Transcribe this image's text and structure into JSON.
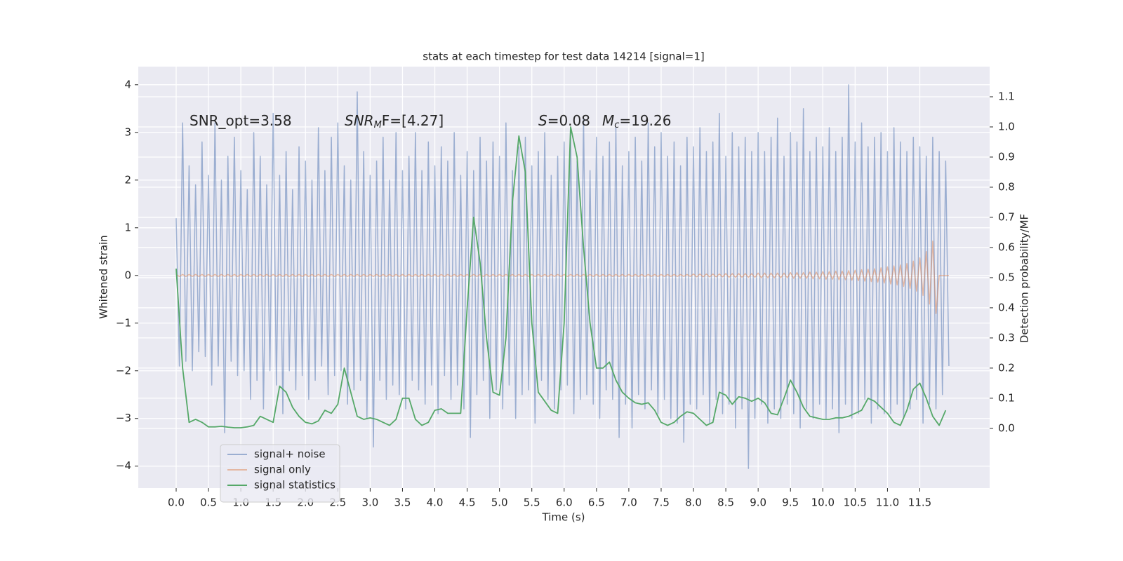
{
  "chart_data": {
    "type": "line",
    "title": "stats at each timestep for test data 14214 [signal=1]",
    "xlabel": "Time (s)",
    "ylabel": "Whitened strain",
    "y2label": "Detection probability/MF",
    "annotations": [
      [
        "SNR_opt=3.58"
      ],
      [
        "SNR",
        "M",
        "F=[4.27]"
      ],
      [
        "S",
        "=0.08"
      ],
      [
        "M",
        "c",
        "=19.26"
      ]
    ],
    "grid": true,
    "legend": "lower left",
    "xlim": [
      -0.586,
      12.58
    ],
    "ylim": [
      -4.46,
      4.38
    ],
    "y2lim": [
      -0.198,
      1.2
    ],
    "xticks": [
      {
        "value": 0,
        "label": "0.0"
      },
      0.5,
      {
        "value": 1,
        "label": "1.0"
      },
      1.5,
      {
        "value": 2,
        "label": "2.0"
      },
      2.5,
      {
        "value": 3,
        "label": "3.0"
      },
      3.5,
      {
        "value": 4,
        "label": "4.0"
      },
      4.5,
      {
        "value": 5,
        "label": "5.0"
      },
      5.5,
      {
        "value": 6,
        "label": "6.0"
      },
      6.5,
      {
        "value": 7,
        "label": "7.0"
      },
      7.5,
      {
        "value": 8,
        "label": "8.0"
      },
      8.5,
      {
        "value": 9,
        "label": "9.0"
      },
      9.5,
      {
        "value": 10,
        "label": "10.0"
      },
      10.5,
      {
        "value": 11,
        "label": "11.0"
      },
      11.5
    ],
    "yticks": [
      {
        "value": -4,
        "label": "−4"
      },
      {
        "value": -3,
        "label": "−3"
      },
      {
        "value": -2,
        "label": "−2"
      },
      {
        "value": -1,
        "label": "−1"
      },
      0,
      1,
      2,
      3,
      4
    ],
    "y2ticks": [
      {
        "value": 0,
        "label": "0.0"
      },
      0.1,
      0.2,
      0.3,
      0.4,
      0.5,
      0.6,
      0.7,
      0.8,
      0.9,
      {
        "value": 1,
        "label": "1.0"
      },
      1.1
    ],
    "x": [
      0,
      0.05,
      0.1,
      0.15,
      0.2,
      0.25,
      0.3,
      0.35,
      0.4,
      0.45,
      0.5,
      0.55,
      0.6,
      0.65,
      0.7,
      0.75,
      0.8,
      0.85,
      0.9,
      0.95,
      1,
      1.05,
      1.1,
      1.15,
      1.2,
      1.25,
      1.3,
      1.35,
      1.4,
      1.45,
      1.5,
      1.55,
      1.6,
      1.65,
      1.7,
      1.75,
      1.8,
      1.85,
      1.9,
      1.95,
      2,
      2.05,
      2.1,
      2.15,
      2.2,
      2.25,
      2.3,
      2.35,
      2.4,
      2.45,
      2.5,
      2.55,
      2.6,
      2.65,
      2.7,
      2.75,
      2.8,
      2.85,
      2.9,
      2.95,
      3,
      3.05,
      3.1,
      3.15,
      3.2,
      3.25,
      3.3,
      3.35,
      3.4,
      3.45,
      3.5,
      3.55,
      3.6,
      3.65,
      3.7,
      3.75,
      3.8,
      3.85,
      3.9,
      3.95,
      4,
      4.05,
      4.1,
      4.15,
      4.2,
      4.25,
      4.3,
      4.35,
      4.4,
      4.45,
      4.5,
      4.55,
      4.6,
      4.65,
      4.7,
      4.75,
      4.8,
      4.85,
      4.9,
      4.95,
      5,
      5.05,
      5.1,
      5.15,
      5.2,
      5.25,
      5.3,
      5.35,
      5.4,
      5.45,
      5.5,
      5.55,
      5.6,
      5.65,
      5.7,
      5.75,
      5.8,
      5.85,
      5.9,
      5.95,
      6,
      6.05,
      6.1,
      6.15,
      6.2,
      6.25,
      6.3,
      6.35,
      6.4,
      6.45,
      6.5,
      6.55,
      6.6,
      6.65,
      6.7,
      6.75,
      6.8,
      6.85,
      6.9,
      6.95,
      7,
      7.05,
      7.1,
      7.15,
      7.2,
      7.25,
      7.3,
      7.35,
      7.4,
      7.45,
      7.5,
      7.55,
      7.6,
      7.65,
      7.7,
      7.75,
      7.8,
      7.85,
      7.9,
      7.95,
      8,
      8.05,
      8.1,
      8.15,
      8.2,
      8.25,
      8.3,
      8.35,
      8.4,
      8.45,
      8.5,
      8.55,
      8.6,
      8.65,
      8.7,
      8.75,
      8.8,
      8.85,
      8.9,
      8.95,
      9,
      9.05,
      9.1,
      9.15,
      9.2,
      9.25,
      9.3,
      9.35,
      9.4,
      9.45,
      9.5,
      9.55,
      9.6,
      9.65,
      9.7,
      9.75,
      9.8,
      9.85,
      9.9,
      9.95,
      10,
      10.05,
      10.1,
      10.15,
      10.2,
      10.25,
      10.3,
      10.35,
      10.4,
      10.45,
      10.5,
      10.55,
      10.6,
      10.65,
      10.7,
      10.75,
      10.8,
      10.85,
      10.9,
      10.95,
      11,
      11.05,
      11.1,
      11.15,
      11.2,
      11.25,
      11.3,
      11.35,
      11.4,
      11.45,
      11.5,
      11.55,
      11.6,
      11.65,
      11.7,
      11.75,
      11.8,
      11.85,
      11.9,
      11.95
    ],
    "series": [
      {
        "name": "signal+ noise",
        "color": "#4c72b0",
        "values": [
          1.2,
          -1.9,
          3.2,
          -1.8,
          2.3,
          -2.0,
          1.9,
          -1.6,
          2.8,
          -1.7,
          2.1,
          -2.3,
          3.2,
          -1.9,
          2.0,
          -3.3,
          2.5,
          -1.8,
          2.9,
          -2.1,
          2.2,
          -2.0,
          1.8,
          -2.6,
          3.0,
          -2.2,
          2.5,
          -2.8,
          1.9,
          -2.0,
          3.4,
          -2.3,
          2.1,
          -2.9,
          2.6,
          -2.0,
          1.8,
          -2.4,
          2.7,
          -2.1,
          2.4,
          -2.6,
          2.0,
          -2.2,
          3.1,
          -1.9,
          2.2,
          -2.5,
          2.9,
          -2.1,
          3.2,
          -2.0,
          2.3,
          -2.7,
          2.0,
          -2.4,
          3.85,
          -2.2,
          2.6,
          -3.0,
          2.1,
          -3.6,
          2.4,
          -2.2,
          2.9,
          -2.6,
          2.0,
          -2.3,
          3.0,
          -2.5,
          2.2,
          -2.8,
          2.5,
          -2.2,
          3.0,
          -2.4,
          2.2,
          -2.7,
          2.8,
          -2.3,
          2.3,
          -2.9,
          2.7,
          -2.1,
          2.4,
          -2.6,
          3.0,
          -2.3,
          2.1,
          -2.8,
          2.6,
          -3.4,
          2.2,
          -2.5,
          2.9,
          -2.2,
          2.4,
          -3.0,
          2.8,
          -2.4,
          2.5,
          -2.8,
          3.2,
          -2.3,
          2.2,
          -3.0,
          2.7,
          -2.5,
          2.9,
          -2.4,
          2.3,
          -3.1,
          2.6,
          -2.2,
          3.0,
          -2.6,
          2.1,
          -2.8,
          2.5,
          -2.4,
          2.8,
          -2.3,
          3.0,
          -2.9,
          2.4,
          -2.6,
          3.3,
          -2.5,
          2.2,
          -2.7,
          2.9,
          -3.0,
          2.5,
          -2.4,
          2.8,
          -2.6,
          3.1,
          -3.4,
          2.3,
          -2.7,
          2.6,
          -3.2,
          2.9,
          -2.5,
          2.4,
          -2.8,
          3.2,
          -2.4,
          2.7,
          -2.9,
          3.0,
          -2.6,
          2.5,
          -3.0,
          2.8,
          -3.1,
          2.3,
          -3.5,
          2.9,
          -2.7,
          2.7,
          -2.8,
          3.1,
          -2.5,
          2.6,
          -3.1,
          2.8,
          -2.6,
          3.4,
          -2.9,
          2.5,
          -2.7,
          3.0,
          -3.2,
          2.7,
          -2.8,
          2.9,
          -4.05,
          2.6,
          -3.0,
          3.0,
          -2.7,
          2.6,
          -3.1,
          2.9,
          -2.8,
          3.3,
          -3.0,
          2.5,
          -2.7,
          3.0,
          -2.9,
          2.8,
          -3.2,
          3.5,
          -2.8,
          2.6,
          -3.0,
          2.9,
          -2.7,
          2.7,
          -3.0,
          3.1,
          -2.8,
          2.6,
          -3.3,
          2.9,
          -2.7,
          4.0,
          -3.0,
          2.8,
          -2.9,
          3.2,
          -2.6,
          2.7,
          -3.1,
          2.9,
          -2.8,
          3.0,
          -2.9,
          2.6,
          -2.9,
          3.1,
          -2.7,
          2.8,
          -3.0,
          2.6,
          -2.8,
          2.9,
          -2.6,
          2.7,
          -3.1,
          2.5,
          -2.7,
          2.9,
          -2.8,
          2.6,
          -2.5,
          2.4,
          -1.9
        ]
      },
      {
        "name": "signal only",
        "color": "#dd8452",
        "values": [
          0.02,
          -0.02,
          0.02,
          -0.02,
          0.02,
          -0.02,
          0.02,
          -0.02,
          0.02,
          -0.02,
          0.02,
          -0.02,
          0.02,
          -0.02,
          0.02,
          -0.02,
          0.02,
          -0.02,
          0.02,
          -0.02,
          0.02,
          -0.02,
          0.02,
          -0.02,
          0.02,
          -0.02,
          0.02,
          -0.02,
          0.02,
          -0.02,
          0.02,
          -0.02,
          0.02,
          -0.02,
          0.02,
          -0.02,
          0.02,
          -0.02,
          0.02,
          -0.02,
          0.02,
          -0.02,
          0.02,
          -0.02,
          0.02,
          -0.02,
          0.02,
          -0.02,
          0.02,
          -0.02,
          0.02,
          -0.02,
          0.02,
          -0.02,
          0.02,
          -0.02,
          0.02,
          -0.02,
          0.02,
          -0.02,
          0.02,
          -0.02,
          0.02,
          -0.02,
          0.02,
          -0.02,
          0.02,
          -0.02,
          0.02,
          -0.02,
          0.02,
          -0.02,
          0.02,
          -0.02,
          0.02,
          -0.02,
          0.02,
          -0.02,
          0.02,
          -0.02,
          0.02,
          -0.02,
          0.02,
          -0.02,
          0.02,
          -0.02,
          0.02,
          -0.02,
          0.02,
          -0.02,
          0.02,
          -0.02,
          0.02,
          -0.02,
          0.02,
          -0.02,
          0.02,
          -0.02,
          0.02,
          -0.02,
          0.02,
          -0.02,
          0.02,
          -0.02,
          0.02,
          -0.02,
          0.02,
          -0.02,
          0.02,
          -0.02,
          0.02,
          -0.02,
          0.02,
          -0.02,
          0.02,
          -0.02,
          0.02,
          -0.02,
          0.02,
          -0.02,
          0.02,
          -0.02,
          0.02,
          -0.02,
          0.02,
          -0.02,
          0.02,
          -0.02,
          0.02,
          -0.02,
          0.02,
          -0.02,
          0.02,
          -0.02,
          0.02,
          -0.02,
          0.02,
          -0.02,
          0.02,
          -0.02,
          0.02,
          -0.02,
          0.02,
          -0.02,
          0.02,
          -0.02,
          0.02,
          -0.02,
          0.02,
          -0.02,
          0.02,
          -0.02,
          0.02,
          -0.02,
          0.02,
          -0.02,
          0.02,
          -0.02,
          0.02,
          -0.02,
          0.03,
          -0.03,
          0.03,
          -0.03,
          0.03,
          -0.03,
          0.03,
          -0.03,
          0.03,
          -0.03,
          0.04,
          -0.04,
          0.04,
          -0.04,
          0.04,
          -0.04,
          0.04,
          -0.04,
          0.04,
          -0.04,
          0.05,
          -0.05,
          0.05,
          -0.05,
          0.05,
          -0.05,
          0.05,
          -0.05,
          0.05,
          -0.05,
          0.06,
          -0.06,
          0.06,
          -0.06,
          0.06,
          -0.06,
          0.07,
          -0.07,
          0.07,
          -0.07,
          0.08,
          -0.08,
          0.08,
          -0.08,
          0.09,
          -0.09,
          0.09,
          -0.09,
          0.1,
          -0.1,
          0.11,
          -0.11,
          0.12,
          -0.12,
          0.13,
          -0.13,
          0.14,
          -0.14,
          0.16,
          -0.16,
          0.18,
          -0.18,
          0.2,
          -0.2,
          0.22,
          -0.23,
          0.25,
          -0.27,
          0.3,
          -0.33,
          0.37,
          -0.42,
          0.5,
          -0.6,
          0.72,
          -0.8,
          0,
          0,
          0,
          0
        ]
      },
      {
        "name": "signal statistics",
        "color": "#55a868",
        "axis": "y2",
        "x": [
          0,
          0.1,
          0.2,
          0.3,
          0.4,
          0.5,
          0.6,
          0.7,
          0.8,
          0.9,
          1,
          1.1,
          1.2,
          1.3,
          1.4,
          1.5,
          1.6,
          1.7,
          1.8,
          1.9,
          2,
          2.1,
          2.2,
          2.3,
          2.4,
          2.5,
          2.6,
          2.7,
          2.8,
          2.9,
          3,
          3.1,
          3.2,
          3.3,
          3.4,
          3.5,
          3.6,
          3.7,
          3.8,
          3.9,
          4,
          4.1,
          4.2,
          4.3,
          4.4,
          4.5,
          4.6,
          4.7,
          4.8,
          4.9,
          5,
          5.1,
          5.2,
          5.3,
          5.4,
          5.5,
          5.6,
          5.7,
          5.8,
          5.9,
          6,
          6.1,
          6.2,
          6.3,
          6.4,
          6.5,
          6.6,
          6.7,
          6.8,
          6.9,
          7,
          7.1,
          7.2,
          7.3,
          7.4,
          7.5,
          7.6,
          7.7,
          7.8,
          7.9,
          8,
          8.1,
          8.2,
          8.3,
          8.4,
          8.5,
          8.6,
          8.7,
          8.8,
          8.9,
          9,
          9.1,
          9.2,
          9.3,
          9.4,
          9.5,
          9.6,
          9.7,
          9.8,
          9.9,
          10,
          10.1,
          10.2,
          10.3,
          10.4,
          10.5,
          10.6,
          10.7,
          10.8,
          10.9,
          11,
          11.1,
          11.2,
          11.3,
          11.4,
          11.5,
          11.6,
          11.7,
          11.8,
          11.9
        ],
        "values": [
          0.53,
          0.2,
          0.02,
          0.03,
          0.02,
          0.005,
          0.005,
          0.007,
          0.004,
          0.002,
          0.002,
          0.005,
          0.01,
          0.04,
          0.03,
          0.02,
          0.14,
          0.12,
          0.07,
          0.04,
          0.02,
          0.015,
          0.025,
          0.06,
          0.05,
          0.08,
          0.2,
          0.12,
          0.04,
          0.03,
          0.035,
          0.03,
          0.02,
          0.01,
          0.03,
          0.1,
          0.1,
          0.03,
          0.01,
          0.02,
          0.06,
          0.065,
          0.05,
          0.05,
          0.05,
          0.4,
          0.7,
          0.55,
          0.3,
          0.12,
          0.11,
          0.3,
          0.75,
          0.97,
          0.85,
          0.35,
          0.12,
          0.09,
          0.06,
          0.05,
          0.35,
          1.0,
          0.9,
          0.6,
          0.35,
          0.2,
          0.2,
          0.22,
          0.16,
          0.12,
          0.1,
          0.085,
          0.08,
          0.085,
          0.06,
          0.02,
          0.01,
          0.02,
          0.04,
          0.055,
          0.05,
          0.03,
          0.01,
          0.02,
          0.12,
          0.11,
          0.08,
          0.105,
          0.1,
          0.09,
          0.1,
          0.085,
          0.05,
          0.045,
          0.1,
          0.16,
          0.12,
          0.07,
          0.04,
          0.035,
          0.03,
          0.03,
          0.035,
          0.035,
          0.04,
          0.05,
          0.06,
          0.1,
          0.09,
          0.07,
          0.05,
          0.02,
          0.01,
          0.06,
          0.13,
          0.15,
          0.1,
          0.04,
          0.01,
          0.06
        ]
      }
    ]
  }
}
